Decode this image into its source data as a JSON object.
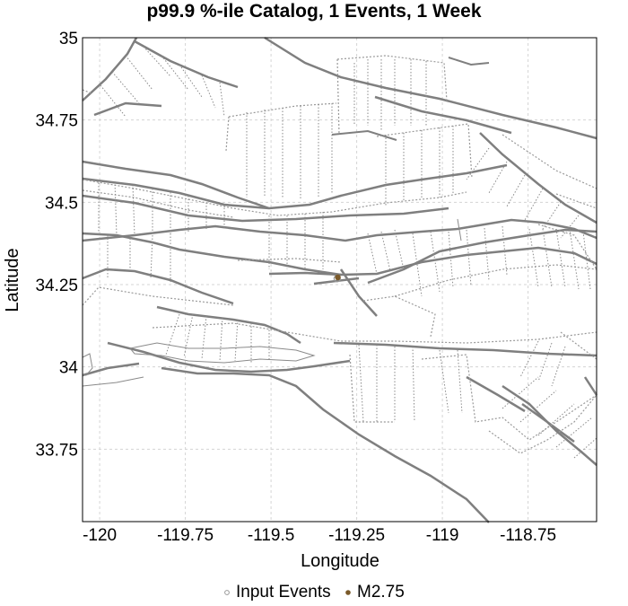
{
  "chart_data": {
    "type": "scatter",
    "title": "p99.9 %-ile Catalog, 1 Events, 1 Week",
    "xlabel": "Longitude",
    "ylabel": "Latitude",
    "xlim": [
      -120.05,
      -118.55
    ],
    "ylim": [
      33.53,
      35.0
    ],
    "x_ticks": [
      -120,
      -119.75,
      -119.5,
      -119.25,
      -119,
      -118.75
    ],
    "x_tick_labels": [
      "-120",
      "-119.75",
      "-119.5",
      "-119.25",
      "-119",
      "-118.75"
    ],
    "y_ticks": [
      35,
      34.75,
      34.5,
      34.25,
      34,
      33.75
    ],
    "y_tick_labels": [
      "35",
      "34.75",
      "34.5",
      "34.25",
      "34",
      "33.75"
    ],
    "grid": true,
    "legend_position": "bottom",
    "series": [
      {
        "name": "Input Events",
        "marker": "open-circle",
        "color": "#999999",
        "points": [
          [
            -119.307,
            34.268
          ]
        ]
      },
      {
        "name": "M2.75",
        "marker": "filled-circle",
        "color": "#7a5a2a",
        "points": [
          [
            -119.305,
            34.272
          ]
        ]
      }
    ],
    "background_layer": "fault traces (gray lines)"
  }
}
